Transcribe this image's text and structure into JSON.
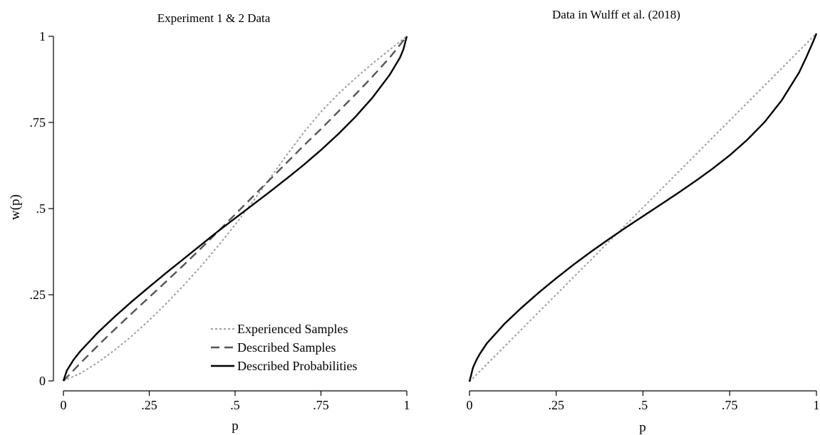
{
  "chart_data": [
    {
      "type": "line",
      "title": "Experiment 1 & 2 Data",
      "xlabel": "p",
      "ylabel": "w(p)",
      "xlim": [
        0,
        1
      ],
      "ylim": [
        0,
        1
      ],
      "xticks": [
        "0",
        ".25",
        ".5",
        ".75",
        "1"
      ],
      "yticks": [
        "0",
        ".25",
        ".5",
        ".75",
        "1"
      ],
      "legend_position": "bottom-right",
      "series": [
        {
          "name": "Experienced Samples",
          "style": "dotted",
          "color": "#a0a0a0",
          "x": [
            0,
            0.05,
            0.1,
            0.15,
            0.2,
            0.25,
            0.3,
            0.35,
            0.4,
            0.45,
            0.5,
            0.55,
            0.6,
            0.65,
            0.7,
            0.75,
            0.8,
            0.85,
            0.9,
            0.95,
            1
          ],
          "y": [
            0,
            0.022,
            0.053,
            0.09,
            0.131,
            0.176,
            0.225,
            0.277,
            0.332,
            0.391,
            0.453,
            0.518,
            0.586,
            0.655,
            0.721,
            0.781,
            0.832,
            0.878,
            0.921,
            0.961,
            1
          ]
        },
        {
          "name": "Described Samples",
          "style": "dashed",
          "color": "#555555",
          "x": [
            0,
            0.05,
            0.1,
            0.15,
            0.2,
            0.25,
            0.3,
            0.35,
            0.4,
            0.45,
            0.5,
            0.55,
            0.6,
            0.65,
            0.7,
            0.75,
            0.8,
            0.85,
            0.9,
            0.95,
            1
          ],
          "y": [
            0,
            0.052,
            0.102,
            0.15,
            0.197,
            0.243,
            0.289,
            0.336,
            0.384,
            0.433,
            0.483,
            0.533,
            0.583,
            0.633,
            0.683,
            0.731,
            0.781,
            0.831,
            0.883,
            0.938,
            1
          ]
        },
        {
          "name": "Described Probabilities",
          "style": "solid",
          "color": "#000000",
          "x": [
            0,
            0.01,
            0.03,
            0.05,
            0.1,
            0.15,
            0.2,
            0.25,
            0.3,
            0.35,
            0.4,
            0.45,
            0.5,
            0.55,
            0.6,
            0.65,
            0.7,
            0.75,
            0.8,
            0.85,
            0.9,
            0.95,
            0.98,
            0.99,
            1
          ],
          "y": [
            0,
            0.03,
            0.062,
            0.087,
            0.14,
            0.187,
            0.231,
            0.273,
            0.314,
            0.354,
            0.394,
            0.434,
            0.472,
            0.51,
            0.548,
            0.587,
            0.627,
            0.67,
            0.716,
            0.766,
            0.822,
            0.888,
            0.938,
            0.962,
            1
          ]
        }
      ]
    },
    {
      "type": "line",
      "title": "Data in Wulff et al. (2018)",
      "xlabel": "p",
      "ylabel": "",
      "xlim": [
        0,
        1
      ],
      "ylim": [
        0,
        1
      ],
      "xticks": [
        "0",
        ".25",
        ".5",
        ".75",
        "1"
      ],
      "series": [
        {
          "style": "dotted",
          "color": "#a0a0a0",
          "x": [
            0,
            1
          ],
          "y": [
            0,
            1
          ]
        },
        {
          "style": "solid",
          "color": "#000000",
          "x": [
            0,
            0.01,
            0.02,
            0.03,
            0.05,
            0.1,
            0.15,
            0.2,
            0.25,
            0.3,
            0.35,
            0.4,
            0.45,
            0.5,
            0.55,
            0.6,
            0.65,
            0.7,
            0.75,
            0.8,
            0.85,
            0.9,
            0.95,
            0.97,
            0.99,
            1
          ],
          "y": [
            0,
            0.04,
            0.062,
            0.08,
            0.11,
            0.165,
            0.212,
            0.256,
            0.297,
            0.336,
            0.373,
            0.408,
            0.442,
            0.475,
            0.508,
            0.541,
            0.575,
            0.611,
            0.65,
            0.694,
            0.745,
            0.808,
            0.888,
            0.93,
            0.975,
            1
          ]
        }
      ]
    }
  ]
}
